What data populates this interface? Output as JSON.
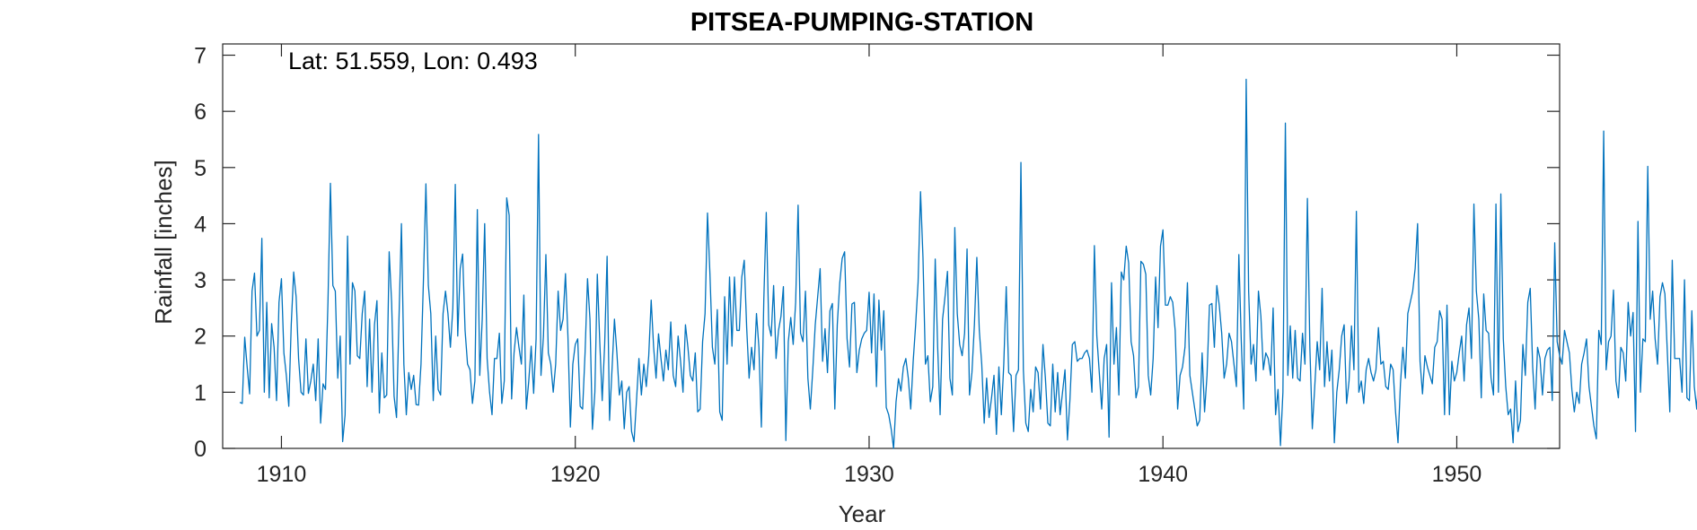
{
  "chart_data": {
    "type": "line",
    "title": "PITSEA-PUMPING-STATION",
    "annotation": "Lat: 51.559, Lon: 0.493",
    "xlabel": "Year",
    "ylabel": "Rainfall [inches]",
    "xlim": [
      1908,
      1953.5
    ],
    "ylim": [
      0,
      7.2
    ],
    "xticks": [
      1910,
      1920,
      1930,
      1940,
      1950
    ],
    "yticks": [
      0,
      1,
      2,
      3,
      4,
      5,
      6,
      7
    ],
    "grid": false,
    "line_color": "#0072bd",
    "series": [
      {
        "x_start": 1908.5833,
        "x_step": 0.083333,
        "values": [
          0.82,
          0.8,
          1.98,
          1.45,
          0.97,
          2.8,
          3.12,
          2.0,
          2.1,
          3.74,
          1.0,
          2.6,
          0.9,
          2.22,
          1.8,
          0.85,
          2.6,
          3.02,
          1.7,
          1.3,
          0.75,
          2.2,
          3.14,
          2.7,
          1.6,
          1.0,
          0.95,
          1.95,
          0.98,
          1.2,
          1.5,
          0.85,
          1.95,
          0.45,
          1.15,
          1.05,
          2.6,
          4.72,
          2.9,
          2.8,
          1.25,
          2.0,
          0.12,
          0.6,
          3.78,
          1.5,
          2.95,
          2.8,
          1.65,
          1.6,
          2.4,
          2.8,
          1.1,
          2.3,
          1.0,
          2.2,
          2.63,
          0.63,
          1.7,
          0.9,
          0.95,
          3.5,
          2.6,
          0.93,
          0.55,
          2.3,
          4.0,
          1.5,
          0.6,
          1.35,
          1.05,
          1.3,
          0.78,
          0.77,
          1.5,
          3.01,
          4.71,
          2.9,
          2.4,
          0.85,
          2.0,
          1.05,
          0.95,
          2.4,
          2.8,
          2.4,
          1.8,
          2.5,
          4.7,
          2.0,
          3.2,
          3.46,
          2.1,
          1.5,
          1.4,
          0.8,
          1.2,
          4.25,
          1.3,
          2.3,
          4.0,
          1.6,
          1.0,
          0.6,
          1.6,
          1.6,
          2.05,
          0.8,
          1.2,
          4.46,
          4.15,
          0.88,
          1.7,
          2.15,
          1.8,
          1.5,
          2.73,
          0.7,
          1.2,
          1.82,
          0.98,
          1.95,
          5.59,
          1.3,
          2.0,
          3.45,
          1.7,
          1.5,
          1.0,
          1.5,
          2.8,
          2.1,
          2.3,
          3.11,
          2.0,
          0.38,
          1.5,
          1.85,
          1.95,
          0.75,
          0.7,
          1.7,
          3.02,
          2.3,
          0.34,
          1.0,
          3.1,
          1.9,
          0.85,
          1.85,
          3.42,
          0.5,
          1.4,
          2.3,
          1.7,
          0.95,
          1.2,
          0.35,
          1.0,
          1.1,
          0.3,
          0.12,
          0.85,
          1.6,
          0.95,
          1.5,
          1.1,
          1.65,
          2.64,
          1.8,
          1.25,
          2.04,
          1.6,
          1.2,
          1.75,
          1.4,
          2.25,
          1.3,
          1.1,
          2.0,
          1.55,
          1.0,
          2.2,
          1.8,
          1.3,
          1.2,
          1.7,
          0.65,
          0.7,
          1.9,
          2.4,
          4.19,
          3.1,
          1.8,
          1.5,
          2.47,
          0.65,
          0.5,
          2.7,
          1.5,
          3.05,
          1.82,
          3.05,
          2.1,
          2.1,
          3.05,
          3.35,
          2.15,
          1.25,
          1.8,
          1.4,
          2.4,
          1.8,
          0.38,
          2.65,
          4.2,
          2.2,
          2.0,
          2.9,
          1.6,
          2.1,
          2.35,
          2.88,
          0.14,
          1.9,
          2.33,
          1.85,
          2.6,
          4.33,
          2.05,
          1.9,
          2.8,
          1.25,
          0.7,
          1.4,
          2.2,
          2.7,
          3.2,
          1.55,
          2.13,
          1.35,
          2.45,
          2.58,
          0.7,
          2.2,
          2.94,
          3.38,
          3.5,
          1.95,
          1.45,
          2.57,
          2.6,
          1.35,
          1.75,
          1.95,
          2.05,
          2.1,
          2.78,
          1.7,
          2.75,
          1.1,
          2.64,
          1.75,
          2.45,
          0.73,
          0.6,
          0.35,
          0.0,
          0.83,
          1.24,
          1.02,
          1.45,
          1.6,
          1.25,
          0.7,
          1.55,
          2.2,
          2.95,
          4.57,
          3.4,
          1.5,
          1.65,
          0.83,
          1.1,
          3.37,
          1.8,
          0.6,
          2.3,
          2.7,
          3.15,
          1.25,
          0.95,
          3.93,
          2.4,
          1.85,
          1.65,
          2.05,
          3.55,
          0.95,
          1.35,
          2.2,
          3.4,
          2.1,
          1.5,
          0.45,
          1.25,
          0.55,
          0.9,
          1.3,
          0.25,
          1.45,
          0.6,
          1.5,
          2.88,
          1.35,
          1.3,
          0.3,
          1.3,
          1.4,
          5.09,
          1.4,
          0.45,
          0.3,
          1.05,
          0.65,
          1.45,
          1.35,
          0.7,
          1.85,
          1.25,
          0.45,
          0.4,
          1.5,
          0.65,
          1.35,
          0.6,
          1.0,
          1.4,
          0.15,
          0.85,
          1.85,
          1.9,
          1.55,
          1.6,
          1.6,
          1.7,
          1.75,
          1.6,
          1.0,
          3.61,
          2.0,
          1.35,
          0.7,
          1.6,
          1.85,
          0.2,
          2.95,
          1.5,
          2.15,
          0.95,
          3.14,
          3.0,
          3.6,
          3.3,
          1.9,
          1.65,
          0.9,
          1.1,
          3.33,
          3.28,
          3.1,
          1.3,
          0.95,
          1.6,
          3.05,
          2.15,
          3.6,
          3.89,
          2.55,
          2.55,
          2.7,
          2.6,
          2.1,
          0.7,
          1.3,
          1.45,
          1.8,
          2.95,
          1.3,
          1.0,
          0.7,
          0.4,
          0.5,
          1.7,
          0.65,
          1.3,
          2.55,
          2.58,
          1.8,
          2.9,
          2.55,
          2.05,
          1.25,
          1.5,
          2.05,
          1.9,
          1.5,
          1.1,
          3.45,
          1.9,
          0.7,
          6.57,
          2.8,
          1.5,
          1.85,
          1.2,
          2.8,
          2.35,
          1.4,
          1.7,
          1.6,
          1.3,
          2.5,
          0.6,
          1.05,
          0.05,
          1.0,
          5.79,
          1.3,
          2.18,
          1.25,
          2.1,
          1.25,
          1.2,
          2.05,
          1.5,
          4.45,
          1.8,
          0.35,
          1.1,
          1.9,
          1.4,
          2.85,
          1.1,
          1.9,
          1.2,
          1.75,
          0.1,
          1.0,
          1.4,
          2.0,
          2.2,
          0.8,
          1.2,
          2.18,
          1.4,
          4.22,
          1.0,
          1.2,
          0.8,
          1.4,
          1.6,
          1.35,
          1.2,
          1.4,
          2.15,
          1.5,
          1.55,
          1.1,
          1.05,
          1.5,
          1.4,
          0.65,
          0.1,
          1.15,
          1.8,
          1.25,
          2.4,
          2.6,
          2.8,
          3.2,
          4.0,
          1.55,
          0.97,
          1.65,
          1.45,
          1.3,
          1.15,
          1.8,
          1.9,
          2.45,
          2.3,
          0.6,
          2.55,
          0.6,
          1.55,
          1.2,
          1.35,
          1.7,
          2.0,
          1.2,
          2.2,
          2.5,
          1.6,
          4.35,
          2.8,
          2.3,
          0.9,
          2.75,
          2.1,
          2.05,
          1.25,
          0.95,
          4.35,
          1.0,
          4.53,
          1.95,
          1.1,
          0.6,
          0.7,
          0.1,
          1.2,
          0.3,
          0.5,
          1.85,
          1.3,
          2.6,
          2.85,
          1.45,
          0.7,
          1.8,
          1.6,
          0.95,
          1.6,
          1.75,
          1.8,
          0.85,
          3.66,
          1.9,
          1.65,
          1.5,
          2.1,
          1.9,
          1.7,
          1.05,
          0.65,
          1.0,
          0.8,
          1.5,
          1.7,
          1.95,
          1.1,
          0.75,
          0.4,
          0.17,
          2.1,
          1.85,
          5.65,
          1.4,
          1.9,
          2.0,
          2.82,
          1.2,
          0.9,
          1.8,
          1.7,
          1.2,
          2.6,
          2.0,
          2.42,
          0.3,
          4.04,
          1.0,
          1.95,
          1.9,
          5.02,
          2.3,
          2.8,
          1.95,
          1.5,
          2.7,
          2.95,
          2.75,
          1.7,
          0.65,
          3.35,
          1.6,
          1.6,
          1.6,
          1.0,
          3.0,
          0.9,
          0.85,
          2.45,
          1.1,
          0.7,
          1.45,
          3.4,
          2.05
        ]
      }
    ]
  }
}
